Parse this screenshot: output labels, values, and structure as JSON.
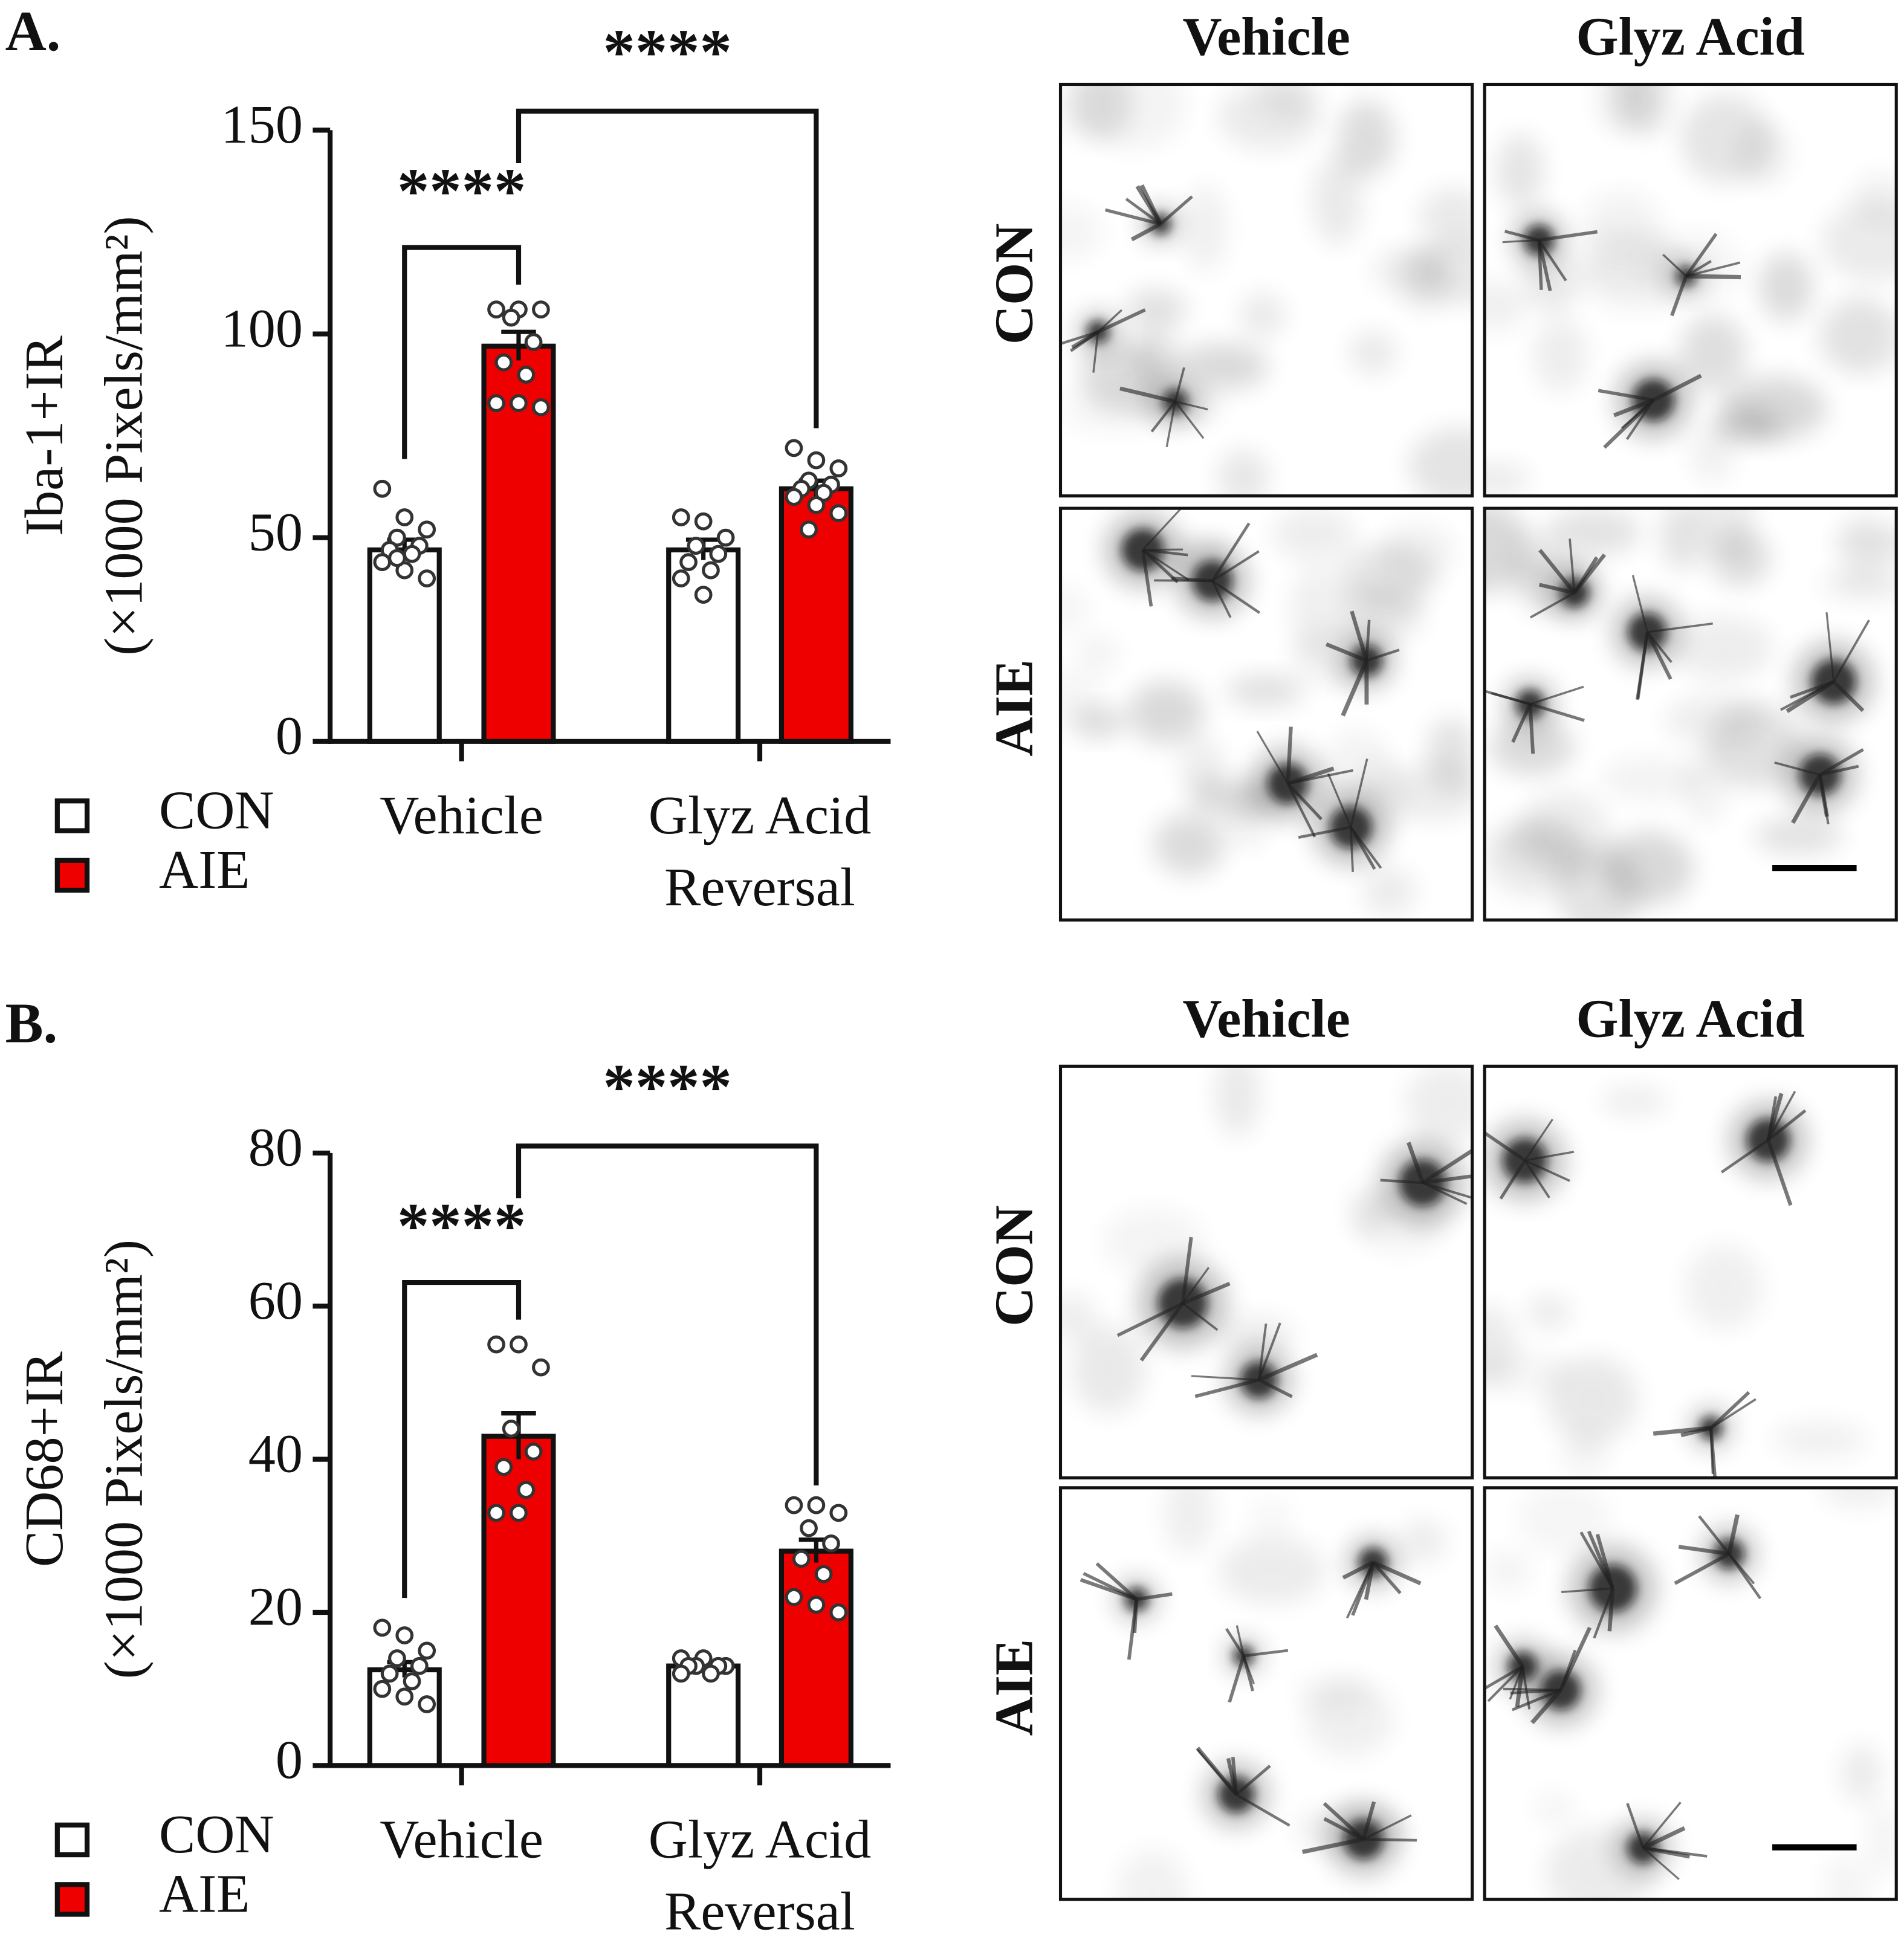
{
  "chart_data": [
    {
      "type": "bar",
      "panel": "A.",
      "ylabel": [
        "Iba-1+IR",
        "(×1000 Pixels/mm²)"
      ],
      "categories": [
        [
          "Vehicle"
        ],
        [
          "Glyz Acid",
          "Reversal"
        ]
      ],
      "ylim": [
        0,
        150
      ],
      "yticks": [
        0,
        50,
        100,
        150
      ],
      "significance": [
        "****",
        "****"
      ],
      "series": [
        {
          "name": "CON",
          "color": "#ffffff",
          "values": [
            47,
            47
          ],
          "errors": [
            2.5,
            2.5
          ],
          "points": [
            [
              62,
              55,
              52,
              50,
              48,
              47,
              46,
              44,
              42,
              40,
              45
            ],
            [
              55,
              54,
              50,
              48,
              46,
              44,
              42,
              40,
              36
            ]
          ]
        },
        {
          "name": "AIE",
          "color": "#ee0000",
          "values": [
            97,
            62
          ],
          "errors": [
            3.5,
            2
          ],
          "points": [
            [
              106,
              106,
              106,
              104,
              98,
              93,
              90,
              83,
              83,
              82
            ],
            [
              72,
              69,
              67,
              64,
              63,
              62,
              61,
              60,
              58,
              56,
              52
            ]
          ]
        }
      ]
    },
    {
      "type": "bar",
      "panel": "B.",
      "ylabel": [
        "CD68+IR",
        "(×1000 Pixels/mm²)"
      ],
      "categories": [
        [
          "Vehicle"
        ],
        [
          "Glyz Acid",
          "Reversal"
        ]
      ],
      "ylim": [
        0,
        80
      ],
      "yticks": [
        0,
        20,
        40,
        60,
        80
      ],
      "significance": [
        "****",
        "****"
      ],
      "series": [
        {
          "name": "CON",
          "color": "#ffffff",
          "values": [
            12.5,
            13
          ],
          "errors": [
            1,
            0.5
          ],
          "points": [
            [
              18,
              17,
              15,
              14,
              13,
              12,
              11,
              10,
              9,
              8
            ],
            [
              14,
              14,
              13,
              13,
              13,
              13,
              12,
              12
            ]
          ]
        },
        {
          "name": "AIE",
          "color": "#ee0000",
          "values": [
            43,
            28
          ],
          "errors": [
            3,
            1.5
          ],
          "points": [
            [
              55,
              55,
              52,
              44,
              41,
              39,
              36,
              33,
              33
            ],
            [
              34,
              34,
              33,
              31,
              29,
              27,
              25,
              22,
              21,
              20
            ]
          ]
        }
      ]
    }
  ],
  "micrographs": [
    {
      "columns": [
        "Vehicle",
        "Glyz Acid"
      ],
      "rows": [
        "CON",
        "AIE"
      ]
    },
    {
      "columns": [
        "Vehicle",
        "Glyz Acid"
      ],
      "rows": [
        "CON",
        "AIE"
      ]
    }
  ]
}
